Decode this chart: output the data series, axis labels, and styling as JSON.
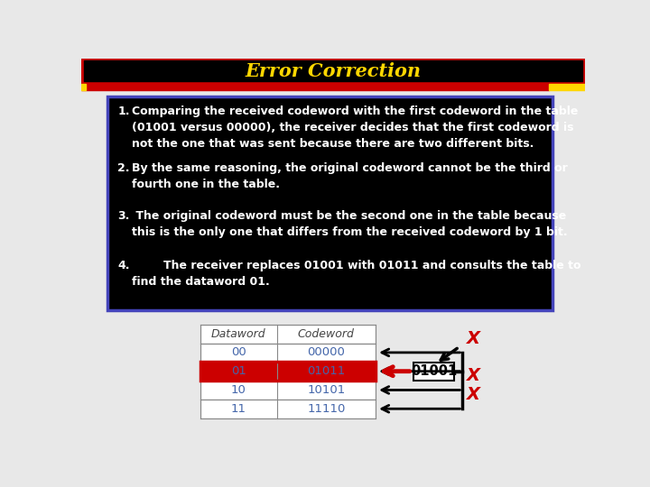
{
  "title": "Error Correction",
  "title_color": "#FFD700",
  "title_bg": "#000000",
  "title_border": "#CC0000",
  "bg_color": "#E8E8E8",
  "text_box_bg": "#000000",
  "text_box_border": "#4444BB",
  "items": [
    {
      "num": "1.",
      "text": "Comparing the received codeword with the first codeword in the table\n(01001 versus 00000), the receiver decides that the first codeword is\nnot the one that was sent because there are two different bits."
    },
    {
      "num": "2.",
      "text": "By the same reasoning, the original codeword cannot be the third or\nfourth one in the table."
    },
    {
      "num": "3.",
      "text": " The original codeword must be the second one in the table because\nthis is the only one that differs from the received codeword by 1 bit."
    },
    {
      "num": "4.",
      "text": "        The receiver replaces 01001 with 01011 and consults the table to\nfind the dataword 01."
    }
  ],
  "table": {
    "headers": [
      "Dataword",
      "Codeword"
    ],
    "rows": [
      [
        "00",
        "00000"
      ],
      [
        "01",
        "01011"
      ],
      [
        "10",
        "10101"
      ],
      [
        "11",
        "11110"
      ]
    ],
    "highlight_row": 1,
    "highlight_color": "#CC0000",
    "text_color": "#4466AA",
    "header_color": "#444444"
  },
  "received": "01001",
  "x_color": "#CC0000",
  "arrow_black": "#000000",
  "arrow_red": "#CC0000"
}
